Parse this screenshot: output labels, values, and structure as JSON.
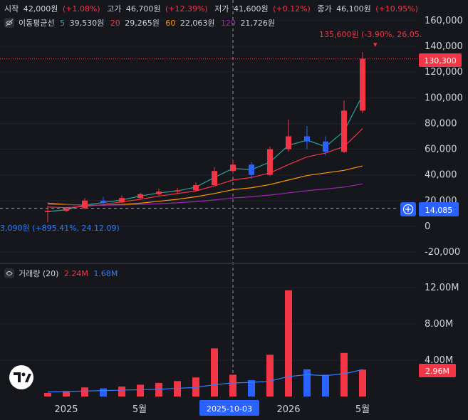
{
  "ohlc": {
    "open_label": "시작",
    "open": "42,000원",
    "open_change": "(+1.08%)",
    "high_label": "고가",
    "high": "46,700원",
    "high_change": "(+12.39%)",
    "low_label": "저가",
    "low": "41,600원",
    "low_change": "(+0.12%)",
    "close_label": "종가",
    "close": "46,100원",
    "close_change": "(+10.95%)"
  },
  "ma_legend": {
    "label": "이동평균선",
    "items": [
      {
        "period": "5",
        "value": "39,530원",
        "color": "#26a69a"
      },
      {
        "period": "20",
        "value": "29,265원",
        "color": "#f23645"
      },
      {
        "period": "60",
        "value": "22,063원",
        "color": "#ff9800"
      },
      {
        "period": "120",
        "value": "21,726원",
        "color": "#9c27b0"
      }
    ]
  },
  "annotations": {
    "high_marker": "135,600원 (-3.90%, 26.05.",
    "low_marker": "3,090원 (+895.41%, 24.12.09)"
  },
  "price_axis": {
    "ticks": [
      "160,000",
      "140,000",
      "120,000",
      "100,000",
      "80,000",
      "60,000",
      "40,000",
      "20,000",
      "0",
      "-20,000"
    ],
    "last_price": "130,300",
    "crosshair_price": "14,085",
    "last_price_color": "#f23645",
    "crosshair_color": "#2962ff"
  },
  "volume_panel": {
    "label": "거래량 (20)",
    "value_up": "2.24M",
    "value_ma": "1.68M",
    "ticks": [
      "12.00M",
      "8.00M",
      "4.00M"
    ],
    "last_volume": "2.96M"
  },
  "time_axis": {
    "ticks": [
      "2025",
      "5월",
      "2026",
      "5월"
    ],
    "crosshair_date": "2025-10-03"
  },
  "colors": {
    "up": "#f23645",
    "down": "#2962ff",
    "bg": "#16171c"
  },
  "chart_data": {
    "type": "candlestick",
    "x_unit": "month",
    "x_range": [
      "2024-12",
      "2026-06"
    ],
    "y_range": [
      -20000,
      160000
    ],
    "candles": [
      {
        "date": "2024-12",
        "open": 11000,
        "high": 16000,
        "low": 3090,
        "close": 12000
      },
      {
        "date": "2025-01",
        "open": 12000,
        "high": 14500,
        "low": 11000,
        "close": 14000
      },
      {
        "date": "2025-02",
        "open": 14000,
        "high": 22000,
        "low": 13500,
        "close": 20000
      },
      {
        "date": "2025-03",
        "open": 20000,
        "high": 23000,
        "low": 17000,
        "close": 18500
      },
      {
        "date": "2025-04",
        "open": 18500,
        "high": 24000,
        "low": 18000,
        "close": 22000
      },
      {
        "date": "2025-05",
        "open": 22000,
        "high": 26000,
        "low": 21000,
        "close": 25000
      },
      {
        "date": "2025-06",
        "open": 25000,
        "high": 29000,
        "low": 23500,
        "close": 27000
      },
      {
        "date": "2025-07",
        "open": 27000,
        "high": 30000,
        "low": 25500,
        "close": 28000
      },
      {
        "date": "2025-08",
        "open": 28000,
        "high": 34000,
        "low": 27000,
        "close": 32000
      },
      {
        "date": "2025-09",
        "open": 32000,
        "high": 46000,
        "low": 31000,
        "close": 43000
      },
      {
        "date": "2025-10",
        "open": 43000,
        "high": 52000,
        "low": 41000,
        "close": 48000
      },
      {
        "date": "2025-11",
        "open": 48000,
        "high": 50000,
        "low": 37000,
        "close": 40000
      },
      {
        "date": "2025-12",
        "open": 40000,
        "high": 62000,
        "low": 39000,
        "close": 60000
      },
      {
        "date": "2026-01",
        "open": 60000,
        "high": 83000,
        "low": 58000,
        "close": 70000
      },
      {
        "date": "2026-02",
        "open": 70000,
        "high": 78000,
        "low": 60000,
        "close": 66000
      },
      {
        "date": "2026-03",
        "open": 66000,
        "high": 70000,
        "low": 55000,
        "close": 58000
      },
      {
        "date": "2026-04",
        "open": 58000,
        "high": 98000,
        "low": 57000,
        "close": 90000
      },
      {
        "date": "2026-05",
        "open": 90000,
        "high": 135600,
        "low": 88000,
        "close": 130300
      }
    ],
    "series": [
      {
        "name": "5",
        "values": [
          11500,
          12800,
          16500,
          18500,
          20500,
          23500,
          26000,
          27500,
          30500,
          38000,
          45000,
          44000,
          50000,
          63000,
          67000,
          62000,
          74000,
          102000
        ]
      },
      {
        "name": "20",
        "values": [
          15000,
          14500,
          15500,
          17000,
          19000,
          21000,
          23500,
          25500,
          27500,
          31500,
          36000,
          38000,
          41500,
          48000,
          54000,
          57000,
          62000,
          76000
        ]
      },
      {
        "name": "60",
        "values": [
          18000,
          17000,
          16500,
          16500,
          17000,
          18000,
          19500,
          21000,
          23000,
          25500,
          28500,
          30000,
          32500,
          36000,
          39500,
          41500,
          43500,
          47000
        ]
      },
      {
        "name": "120",
        "values": [
          17000,
          16800,
          16600,
          16500,
          16600,
          17000,
          17600,
          18300,
          19200,
          20500,
          22000,
          23000,
          24300,
          26000,
          27700,
          29000,
          30500,
          33000
        ]
      }
    ],
    "volume_ma": [
      0.5,
      0.55,
      0.6,
      0.65,
      0.7,
      0.75,
      0.8,
      0.9,
      1.0,
      1.3,
      1.5,
      1.55,
      1.7,
      2.2,
      2.4,
      2.3,
      2.5,
      2.96
    ],
    "volumes": [
      0.4,
      0.6,
      1.0,
      0.9,
      1.1,
      1.3,
      1.5,
      1.7,
      2.1,
      5.3,
      2.4,
      1.8,
      4.6,
      11.7,
      3.0,
      2.4,
      4.8,
      2.96
    ]
  }
}
